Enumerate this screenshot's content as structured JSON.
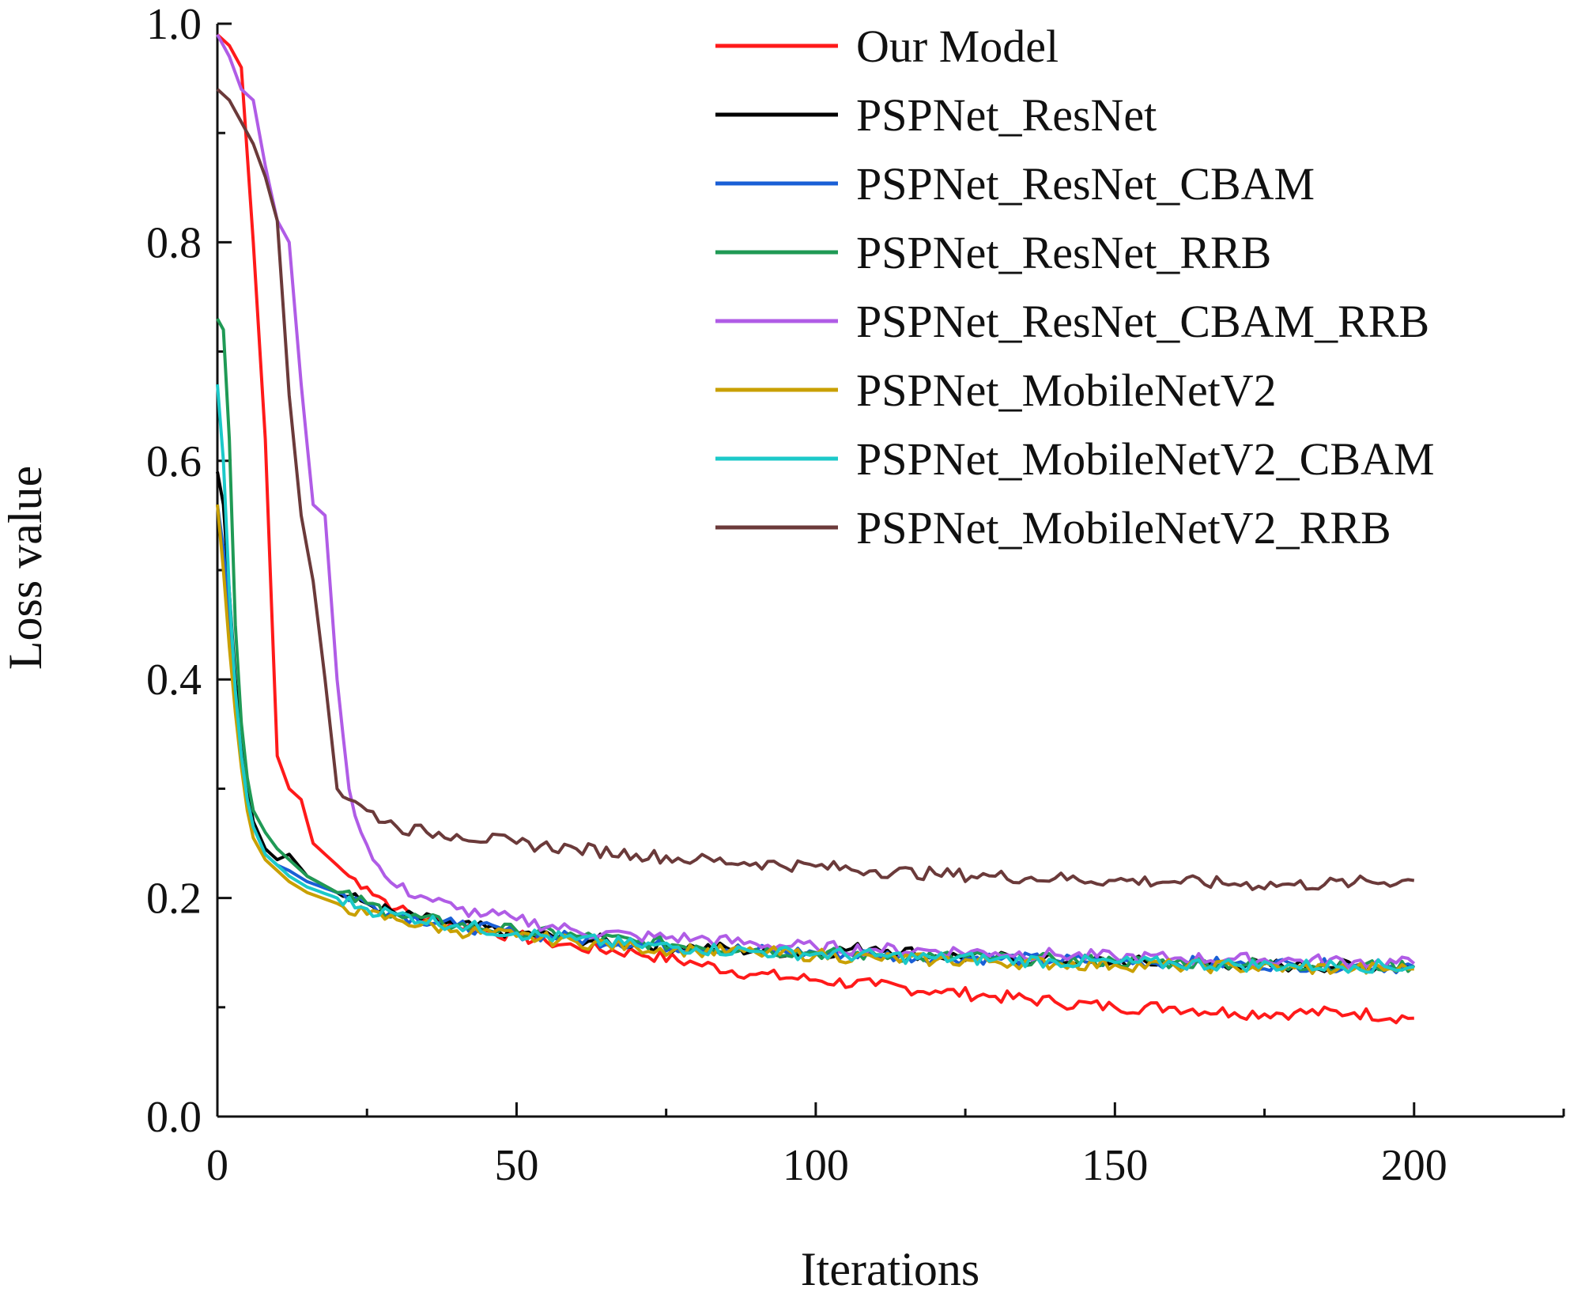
{
  "chart_data": {
    "type": "line",
    "title": "",
    "xlabel": "Iterations",
    "ylabel": "Loss value",
    "xlim": [
      0,
      225
    ],
    "ylim": [
      0.0,
      1.0
    ],
    "xticks": [
      0,
      50,
      100,
      150,
      200
    ],
    "xtick_labels": [
      "0",
      "50",
      "100",
      "150",
      "200"
    ],
    "yticks": [
      0.0,
      0.2,
      0.4,
      0.6,
      0.8,
      1.0
    ],
    "ytick_labels": [
      "0.0",
      "0.2",
      "0.4",
      "0.6",
      "0.8",
      "1.0"
    ],
    "grid": false,
    "legend_position": "top-right",
    "series": [
      {
        "name": "Our Model",
        "color": "#ff1a1a",
        "x": [
          0,
          2,
          4,
          6,
          8,
          10,
          12,
          14,
          16,
          18,
          20,
          22,
          25,
          30,
          35,
          40,
          45,
          50,
          55,
          60,
          70,
          80,
          90,
          100,
          110,
          120,
          130,
          140,
          150,
          160,
          170,
          180,
          190,
          200
        ],
        "y": [
          0.99,
          0.98,
          0.96,
          0.8,
          0.62,
          0.33,
          0.3,
          0.29,
          0.25,
          0.24,
          0.23,
          0.22,
          0.21,
          0.19,
          0.18,
          0.175,
          0.17,
          0.165,
          0.16,
          0.155,
          0.15,
          0.14,
          0.13,
          0.125,
          0.12,
          0.115,
          0.11,
          0.105,
          0.1,
          0.1,
          0.095,
          0.095,
          0.095,
          0.09
        ]
      },
      {
        "name": "PSPNet_ResNet",
        "color": "#000000",
        "x": [
          0,
          1,
          2,
          3,
          4,
          5,
          6,
          8,
          10,
          12,
          15,
          20,
          25,
          30,
          40,
          50,
          60,
          70,
          80,
          90,
          100,
          110,
          120,
          130,
          140,
          150,
          160,
          170,
          180,
          190,
          200
        ],
        "y": [
          0.59,
          0.56,
          0.48,
          0.4,
          0.34,
          0.3,
          0.27,
          0.245,
          0.235,
          0.24,
          0.22,
          0.205,
          0.195,
          0.185,
          0.175,
          0.168,
          0.163,
          0.158,
          0.155,
          0.152,
          0.15,
          0.155,
          0.147,
          0.145,
          0.143,
          0.142,
          0.14,
          0.14,
          0.138,
          0.138,
          0.137
        ]
      },
      {
        "name": "PSPNet_ResNet_CBAM",
        "color": "#1a5fd6",
        "x": [
          0,
          1,
          2,
          3,
          4,
          5,
          6,
          8,
          10,
          12,
          15,
          20,
          25,
          30,
          40,
          50,
          60,
          70,
          80,
          90,
          100,
          110,
          120,
          130,
          140,
          150,
          160,
          170,
          180,
          190,
          200
        ],
        "y": [
          0.56,
          0.52,
          0.45,
          0.38,
          0.33,
          0.29,
          0.265,
          0.24,
          0.23,
          0.225,
          0.215,
          0.205,
          0.195,
          0.185,
          0.175,
          0.168,
          0.163,
          0.158,
          0.155,
          0.152,
          0.15,
          0.148,
          0.146,
          0.145,
          0.143,
          0.142,
          0.141,
          0.14,
          0.139,
          0.138,
          0.137
        ]
      },
      {
        "name": "PSPNet_ResNet_RRB",
        "color": "#1f9a55",
        "x": [
          0,
          1,
          2,
          3,
          4,
          5,
          6,
          8,
          10,
          12,
          15,
          20,
          25,
          30,
          40,
          50,
          60,
          70,
          80,
          90,
          100,
          110,
          120,
          130,
          140,
          150,
          160,
          170,
          180,
          190,
          200
        ],
        "y": [
          0.73,
          0.72,
          0.62,
          0.45,
          0.36,
          0.31,
          0.28,
          0.26,
          0.245,
          0.235,
          0.22,
          0.205,
          0.195,
          0.185,
          0.175,
          0.17,
          0.165,
          0.16,
          0.156,
          0.153,
          0.15,
          0.148,
          0.146,
          0.145,
          0.143,
          0.142,
          0.141,
          0.14,
          0.139,
          0.138,
          0.138
        ]
      },
      {
        "name": "PSPNet_ResNet_CBAM_RRB",
        "color": "#b05ce6",
        "x": [
          0,
          2,
          4,
          6,
          8,
          10,
          12,
          14,
          16,
          18,
          20,
          22,
          24,
          26,
          28,
          30,
          35,
          40,
          45,
          50,
          60,
          70,
          80,
          90,
          100,
          110,
          120,
          130,
          140,
          150,
          160,
          170,
          180,
          190,
          200
        ],
        "y": [
          0.99,
          0.97,
          0.94,
          0.93,
          0.87,
          0.82,
          0.8,
          0.67,
          0.56,
          0.55,
          0.4,
          0.3,
          0.26,
          0.235,
          0.22,
          0.21,
          0.2,
          0.19,
          0.185,
          0.18,
          0.17,
          0.165,
          0.163,
          0.158,
          0.155,
          0.153,
          0.152,
          0.15,
          0.148,
          0.146,
          0.145,
          0.144,
          0.143,
          0.142,
          0.14
        ]
      },
      {
        "name": "PSPNet_MobileNetV2",
        "color": "#c9a000",
        "x": [
          0,
          1,
          2,
          3,
          4,
          5,
          6,
          8,
          10,
          12,
          15,
          20,
          25,
          30,
          40,
          50,
          60,
          70,
          80,
          90,
          100,
          110,
          120,
          130,
          140,
          150,
          160,
          170,
          180,
          190,
          200
        ],
        "y": [
          0.56,
          0.5,
          0.43,
          0.37,
          0.32,
          0.28,
          0.255,
          0.235,
          0.225,
          0.215,
          0.205,
          0.195,
          0.185,
          0.18,
          0.17,
          0.165,
          0.16,
          0.155,
          0.152,
          0.15,
          0.148,
          0.145,
          0.143,
          0.142,
          0.14,
          0.139,
          0.138,
          0.137,
          0.136,
          0.135,
          0.135
        ]
      },
      {
        "name": "PSPNet_MobileNetV2_CBAM",
        "color": "#1cc9c9",
        "x": [
          0,
          1,
          2,
          3,
          4,
          5,
          6,
          8,
          10,
          12,
          15,
          20,
          25,
          30,
          40,
          50,
          60,
          70,
          80,
          90,
          100,
          110,
          120,
          130,
          140,
          150,
          160,
          170,
          180,
          190,
          200
        ],
        "y": [
          0.67,
          0.6,
          0.48,
          0.39,
          0.33,
          0.29,
          0.265,
          0.24,
          0.23,
          0.22,
          0.21,
          0.2,
          0.19,
          0.185,
          0.175,
          0.168,
          0.162,
          0.157,
          0.154,
          0.151,
          0.149,
          0.147,
          0.145,
          0.144,
          0.142,
          0.141,
          0.14,
          0.139,
          0.138,
          0.138,
          0.137
        ]
      },
      {
        "name": "PSPNet_MobileNetV2_RRB",
        "color": "#6b3a3a",
        "x": [
          0,
          2,
          4,
          6,
          8,
          10,
          12,
          14,
          16,
          18,
          20,
          22,
          25,
          30,
          35,
          40,
          50,
          60,
          70,
          80,
          90,
          100,
          110,
          120,
          130,
          140,
          150,
          160,
          170,
          180,
          190,
          200
        ],
        "y": [
          0.94,
          0.93,
          0.91,
          0.89,
          0.86,
          0.82,
          0.66,
          0.55,
          0.49,
          0.4,
          0.3,
          0.29,
          0.28,
          0.265,
          0.26,
          0.258,
          0.25,
          0.245,
          0.24,
          0.235,
          0.232,
          0.229,
          0.225,
          0.222,
          0.22,
          0.218,
          0.216,
          0.215,
          0.213,
          0.212,
          0.214,
          0.216
        ]
      }
    ]
  }
}
